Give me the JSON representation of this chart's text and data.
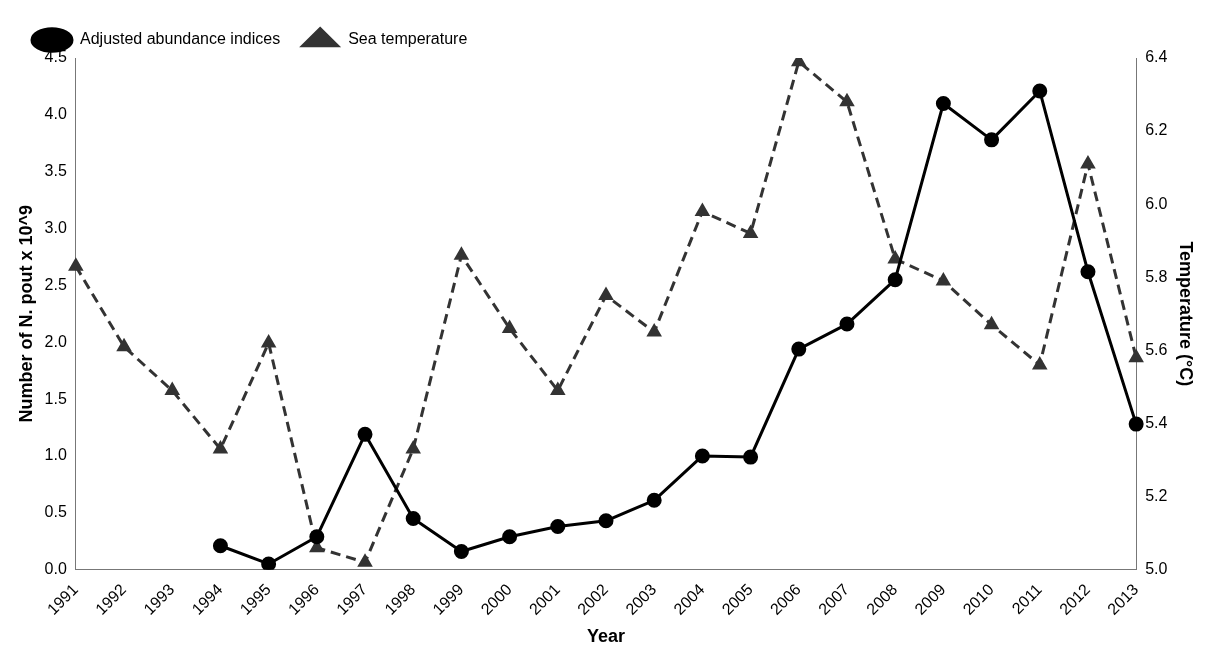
{
  "chart_data": {
    "type": "line",
    "xlabel": "Year",
    "ylabel": "Number of N. pout x 10^9",
    "y2label": "Temperature (°C)",
    "categories": [
      "1991",
      "1992",
      "1993",
      "1994",
      "1995",
      "1996",
      "1997",
      "1998",
      "1999",
      "2000",
      "2001",
      "2002",
      "2003",
      "2004",
      "2005",
      "2006",
      "2007",
      "2008",
      "2009",
      "2010",
      "2011",
      "2012",
      "2013"
    ],
    "series": [
      {
        "name": "Adjusted abundance indices",
        "color": "#000000",
        "marker": "circle",
        "line_style": "solid",
        "values": [
          null,
          null,
          null,
          0.21,
          0.05,
          0.29,
          1.19,
          0.45,
          0.16,
          0.29,
          0.38,
          0.43,
          0.61,
          1.0,
          0.99,
          1.94,
          2.16,
          2.55,
          4.1,
          3.78,
          4.21,
          2.62,
          1.28
        ]
      },
      {
        "name": "Sea temperature",
        "color": "#333333",
        "marker": "triangle",
        "line_style": "dashed",
        "axis": "y2",
        "values": [
          5.83,
          5.61,
          5.49,
          5.33,
          5.62,
          5.06,
          5.02,
          5.33,
          5.86,
          5.66,
          5.49,
          5.75,
          5.65,
          5.98,
          5.92,
          6.39,
          6.28,
          5.85,
          5.79,
          5.67,
          5.56,
          6.11,
          5.58
        ]
      }
    ],
    "ylim": [
      0,
      4.5
    ],
    "yticks": [
      {
        "value": 0,
        "label": "0.0"
      },
      {
        "value": 0.5,
        "label": "0.5"
      },
      {
        "value": 1,
        "label": "1.0"
      },
      {
        "value": 1.5,
        "label": "1.5"
      },
      {
        "value": 2,
        "label": "2.0"
      },
      {
        "value": 2.5,
        "label": "2.5"
      },
      {
        "value": 3,
        "label": "3.0"
      },
      {
        "value": 3.5,
        "label": "3.5"
      },
      {
        "value": 4,
        "label": "4.0"
      },
      {
        "value": 4.5,
        "label": "4.5"
      }
    ],
    "y2lim": [
      5,
      6.4
    ],
    "y2ticks": [
      {
        "value": 5,
        "label": "5.0"
      },
      {
        "value": 5.2,
        "label": "5.2"
      },
      {
        "value": 5.4,
        "label": "5.4"
      },
      {
        "value": 5.6,
        "label": "5.6"
      },
      {
        "value": 5.8,
        "label": "5.8"
      },
      {
        "value": 6,
        "label": "6.0"
      },
      {
        "value": 6.2,
        "label": "6.2"
      },
      {
        "value": 6.4,
        "label": "6.4"
      }
    ],
    "grid": false,
    "legend": "top left"
  }
}
